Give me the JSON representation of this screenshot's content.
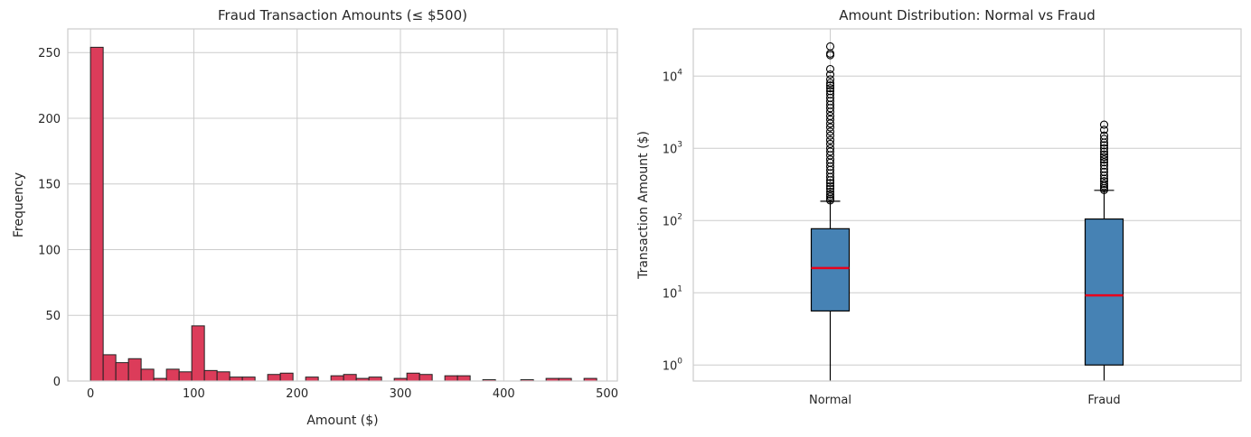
{
  "chart_data": [
    {
      "type": "bar",
      "subtype": "histogram",
      "title": "Fraud Transaction Amounts (≤ $500)",
      "xlabel": "Amount ($)",
      "ylabel": "Frequency",
      "xlim": [
        -22,
        510
      ],
      "ylim": [
        0,
        268
      ],
      "xticks": [
        0,
        100,
        200,
        300,
        400,
        500
      ],
      "yticks": [
        0,
        50,
        100,
        150,
        200,
        250
      ],
      "bin_width": 12.25,
      "bin_start": 0,
      "values": [
        254,
        20,
        14,
        17,
        9,
        2,
        9,
        7,
        42,
        8,
        7,
        3,
        3,
        0,
        5,
        6,
        0,
        3,
        0,
        4,
        5,
        2,
        3,
        0,
        2,
        6,
        5,
        0,
        4,
        4,
        0,
        1,
        0,
        0,
        1,
        0,
        2,
        2,
        0,
        2
      ],
      "bar_color": "#dc3c5a",
      "edge_color": "#222222",
      "grid": true
    },
    {
      "type": "box",
      "title": "Amount Distribution: Normal vs Fraud",
      "xlabel": "",
      "ylabel": "Transaction Amount ($)",
      "yscale": "log",
      "ylim": [
        0.6,
        45000
      ],
      "yticks": [
        1,
        10,
        100,
        1000,
        10000
      ],
      "ytick_labels": [
        {
          "base": "10",
          "exp": "0"
        },
        {
          "base": "10",
          "exp": "1"
        },
        {
          "base": "10",
          "exp": "2"
        },
        {
          "base": "10",
          "exp": "3"
        },
        {
          "base": "10",
          "exp": "4"
        }
      ],
      "categories": [
        "Normal",
        "Fraud"
      ],
      "boxes": [
        {
          "name": "Normal",
          "whisker_low": 0.6,
          "q1": 5.6,
          "median": 22,
          "q3": 77,
          "whisker_high": 185,
          "fliers": [
            190,
            200,
            215,
            230,
            250,
            275,
            300,
            330,
            360,
            400,
            450,
            500,
            560,
            630,
            700,
            800,
            900,
            1000,
            1150,
            1300,
            1500,
            1700,
            1950,
            2200,
            2500,
            2800,
            3200,
            3600,
            4000,
            4500,
            5000,
            5600,
            6200,
            6800,
            7400,
            8000,
            9000,
            10500,
            12500,
            19500,
            20500,
            25700
          ]
        },
        {
          "name": "Fraud",
          "whisker_low": 0.6,
          "q1": 1.0,
          "median": 9.2,
          "q3": 105,
          "whisker_high": 262,
          "fliers": [
            265,
            280,
            300,
            320,
            350,
            380,
            420,
            470,
            520,
            580,
            640,
            700,
            760,
            820,
            900,
            1000,
            1100,
            1200,
            1350,
            1500,
            1800,
            2125
          ]
        }
      ],
      "box_color": "#4682b4",
      "median_color": "#e8001c",
      "grid": true
    }
  ]
}
